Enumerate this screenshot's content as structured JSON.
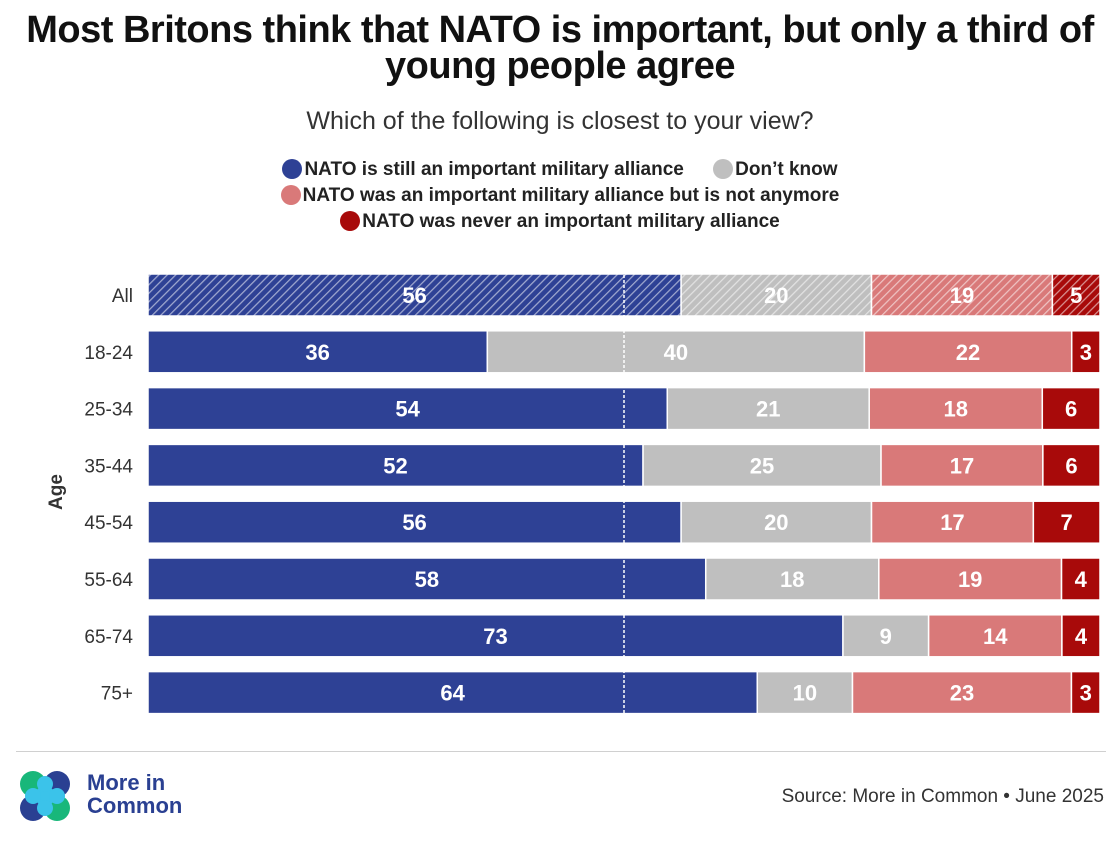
{
  "title": "Most Britons think that NATO is important, but only a third of young people agree",
  "subtitle": "Which of the following is closest to your view?",
  "legend": [
    {
      "label": "NATO is still an important military alliance",
      "color": "#2e4195"
    },
    {
      "label": "Don’t know",
      "color": "#bfbfbf"
    },
    {
      "label": "NATO was an important military alliance but is not anymore",
      "color": "#d97979"
    },
    {
      "label": "NATO was never an important military alliance",
      "color": "#a80a0a"
    }
  ],
  "chart_data": {
    "type": "bar",
    "orientation": "horizontal",
    "stacked": true,
    "normalized": "percent",
    "xlim": [
      0,
      100
    ],
    "ylabel": "Age",
    "reference_line_at": 50,
    "highlighted_category": "All",
    "categories": [
      "All",
      "18-24",
      "25-34",
      "35-44",
      "45-54",
      "55-64",
      "65-74",
      "75+"
    ],
    "series": [
      {
        "name": "NATO is still an important military alliance",
        "color": "#2e4195",
        "label_color": "#ffffff",
        "values": [
          56,
          36,
          54,
          52,
          56,
          58,
          73,
          64
        ]
      },
      {
        "name": "Don’t know",
        "color": "#bfbfbf",
        "label_color": "#ffffff",
        "values": [
          20,
          40,
          21,
          25,
          20,
          18,
          9,
          10
        ]
      },
      {
        "name": "NATO was an important military alliance but is not anymore",
        "color": "#d97979",
        "label_color": "#ffffff",
        "values": [
          19,
          22,
          18,
          17,
          17,
          19,
          14,
          23
        ]
      },
      {
        "name": "NATO was never an important military alliance",
        "color": "#a80a0a",
        "label_color": "#ffffff",
        "values": [
          5,
          3,
          6,
          6,
          7,
          4,
          4,
          3
        ]
      }
    ]
  },
  "footer": {
    "brand": "More in Common",
    "source": "Source: More in Common • June 2025"
  }
}
